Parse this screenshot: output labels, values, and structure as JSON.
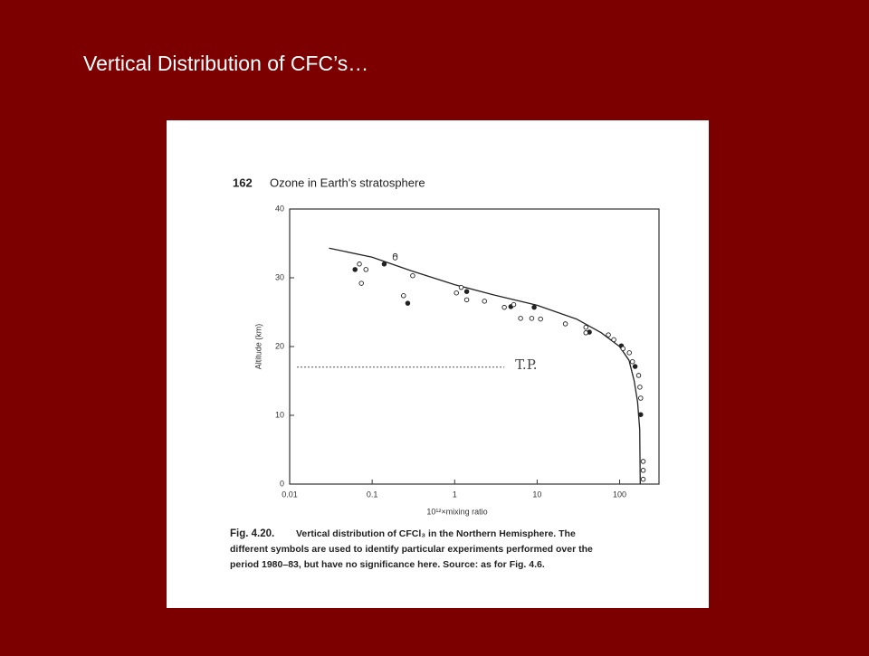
{
  "slide_title": "Vertical Distribution of CFC’s…",
  "figure_header": {
    "page": "162",
    "title": "Ozone in Earth's stratosphere"
  },
  "caption": {
    "label": "Fig. 4.20.",
    "lines": [
      "Vertical distribution of CFCl₃ in the Northern Hemisphere. The",
      "different symbols are used to identify particular experiments performed over the",
      "period 1980–83, but have no significance here. Source: as for Fig. 4.6."
    ]
  },
  "chart_data": {
    "type": "line",
    "xlabel": "10¹²×mixing ratio",
    "ylabel": "Altitude (km)",
    "xscale": "log",
    "xlim": [
      0.01,
      300
    ],
    "ylim": [
      0,
      40
    ],
    "xticks": [
      0.01,
      0.1,
      1,
      10,
      100
    ],
    "yticks": [
      0,
      10,
      20,
      30,
      40
    ],
    "color": "#222222",
    "model": {
      "x": [
        0.03,
        0.1,
        0.3,
        1,
        3,
        10,
        30,
        60,
        100,
        130,
        150,
        165,
        175,
        178
      ],
      "y": [
        34.3,
        33,
        31,
        29,
        27.5,
        26,
        24,
        22,
        20,
        18,
        15,
        12,
        8,
        0
      ]
    },
    "observations": {
      "x": [
        0.062,
        0.07,
        0.084,
        0.074,
        0.14,
        0.19,
        0.19,
        0.24,
        0.27,
        0.31,
        1.05,
        1.2,
        1.4,
        1.4,
        2.3,
        4.0,
        4.8,
        5.2,
        6.3,
        8.6,
        9.2,
        11,
        22,
        39,
        43,
        39,
        73,
        85,
        105,
        110,
        131,
        143,
        154,
        170,
        176,
        180,
        180,
        193,
        193,
        193
      ],
      "y": [
        31.2,
        32,
        31.2,
        29.2,
        32,
        33.2,
        32.9,
        27.4,
        26.3,
        30.3,
        27.8,
        28.6,
        28,
        26.8,
        26.6,
        25.7,
        25.8,
        26.1,
        24.1,
        24.1,
        25.7,
        24,
        23.3,
        22.8,
        22.1,
        22,
        21.7,
        21,
        20.1,
        19.7,
        19.1,
        17.8,
        17.1,
        15.8,
        14.1,
        12.5,
        10.1,
        3.3,
        2,
        0.7
      ]
    },
    "annotations": [
      {
        "text": "T.P.",
        "x": [
          0.01,
          4
        ],
        "y": 17
      }
    ]
  }
}
